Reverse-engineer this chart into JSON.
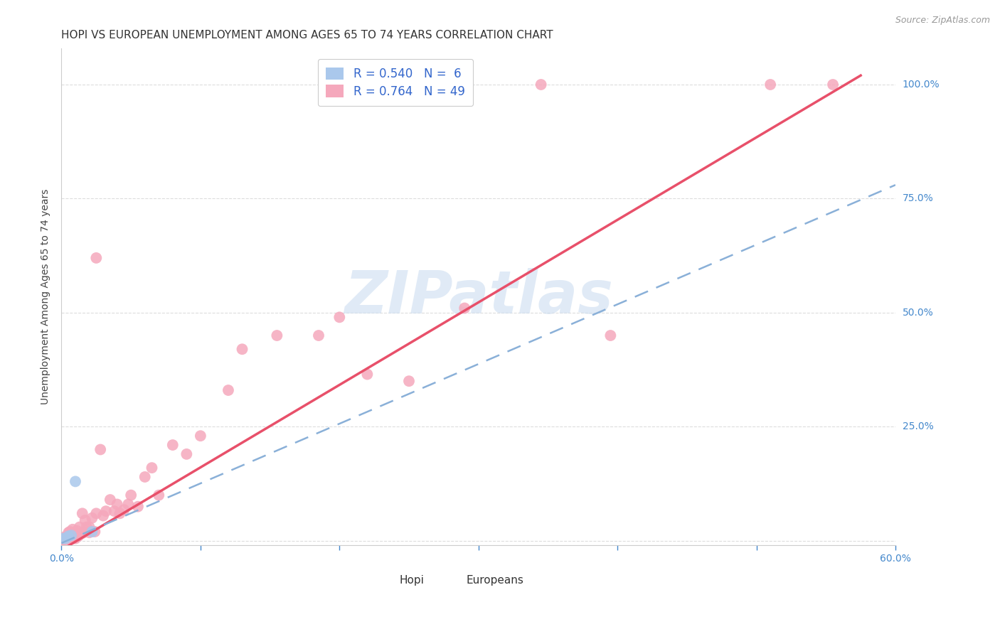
{
  "title": "HOPI VS EUROPEAN UNEMPLOYMENT AMONG AGES 65 TO 74 YEARS CORRELATION CHART",
  "source": "Source: ZipAtlas.com",
  "xlabel": "",
  "ylabel": "Unemployment Among Ages 65 to 74 years",
  "xlim": [
    0.0,
    0.6
  ],
  "ylim": [
    -0.01,
    1.08
  ],
  "xticks": [
    0.0,
    0.1,
    0.2,
    0.3,
    0.4,
    0.5,
    0.6
  ],
  "xtick_labels": [
    "0.0%",
    "",
    "",
    "",
    "",
    "",
    "60.0%"
  ],
  "yticks": [
    0.0,
    0.25,
    0.5,
    0.75,
    1.0
  ],
  "ytick_labels_right": [
    "",
    "25.0%",
    "50.0%",
    "75.0%",
    "100.0%"
  ],
  "hopi_R": 0.54,
  "hopi_N": 6,
  "euro_R": 0.764,
  "euro_N": 49,
  "hopi_color": "#aac8ec",
  "euro_color": "#f5a8bc",
  "hopi_line_color": "#8ab0d8",
  "euro_line_color": "#e8506a",
  "watermark_text": "ZIPatlas",
  "background_color": "#ffffff",
  "grid_color": "#dddddd",
  "title_fontsize": 11,
  "axis_label_fontsize": 10,
  "tick_fontsize": 10,
  "right_tick_color": "#4488cc",
  "bottom_tick_color": "#4488cc",
  "watermark_color": "#ccddf0",
  "hopi_x": [
    0.001,
    0.003,
    0.005,
    0.007,
    0.01,
    0.022
  ],
  "hopi_y": [
    0.005,
    0.005,
    0.01,
    0.012,
    0.13,
    0.02
  ],
  "euro_x": [
    0.0,
    0.0,
    0.0,
    0.001,
    0.002,
    0.002,
    0.003,
    0.003,
    0.004,
    0.005,
    0.005,
    0.006,
    0.007,
    0.008,
    0.008,
    0.009,
    0.01,
    0.01,
    0.011,
    0.012,
    0.013,
    0.014,
    0.015,
    0.016,
    0.017,
    0.018,
    0.02,
    0.02,
    0.022,
    0.024,
    0.025,
    0.028,
    0.03,
    0.032,
    0.035,
    0.038,
    0.04,
    0.042,
    0.045,
    0.048,
    0.05,
    0.055,
    0.06,
    0.065,
    0.07,
    0.08,
    0.09,
    0.1,
    0.12
  ],
  "euro_y": [
    0.0,
    0.0,
    0.005,
    0.003,
    0.005,
    0.008,
    0.003,
    0.005,
    0.003,
    0.005,
    0.018,
    0.02,
    0.01,
    0.005,
    0.025,
    0.012,
    0.005,
    0.018,
    0.022,
    0.01,
    0.03,
    0.015,
    0.06,
    0.018,
    0.045,
    0.03,
    0.03,
    0.018,
    0.05,
    0.02,
    0.06,
    0.2,
    0.055,
    0.065,
    0.09,
    0.065,
    0.08,
    0.06,
    0.068,
    0.08,
    0.1,
    0.075,
    0.14,
    0.16,
    0.1,
    0.21,
    0.19,
    0.23,
    0.33
  ],
  "euro_x_outliers": [
    0.025,
    0.13,
    0.155,
    0.185,
    0.2,
    0.22,
    0.25,
    0.29,
    0.345,
    0.395,
    0.51,
    0.555
  ],
  "euro_y_outliers": [
    0.62,
    0.42,
    0.45,
    0.45,
    0.49,
    0.365,
    0.35,
    0.51,
    1.0,
    0.45,
    1.0,
    1.0
  ],
  "hopi_line_x0": 0.0,
  "hopi_line_y0": -0.005,
  "hopi_line_x1": 0.6,
  "hopi_line_y1": 0.78,
  "euro_line_x0": 0.0,
  "euro_line_y0": -0.02,
  "euro_line_x1": 0.575,
  "euro_line_y1": 1.02
}
